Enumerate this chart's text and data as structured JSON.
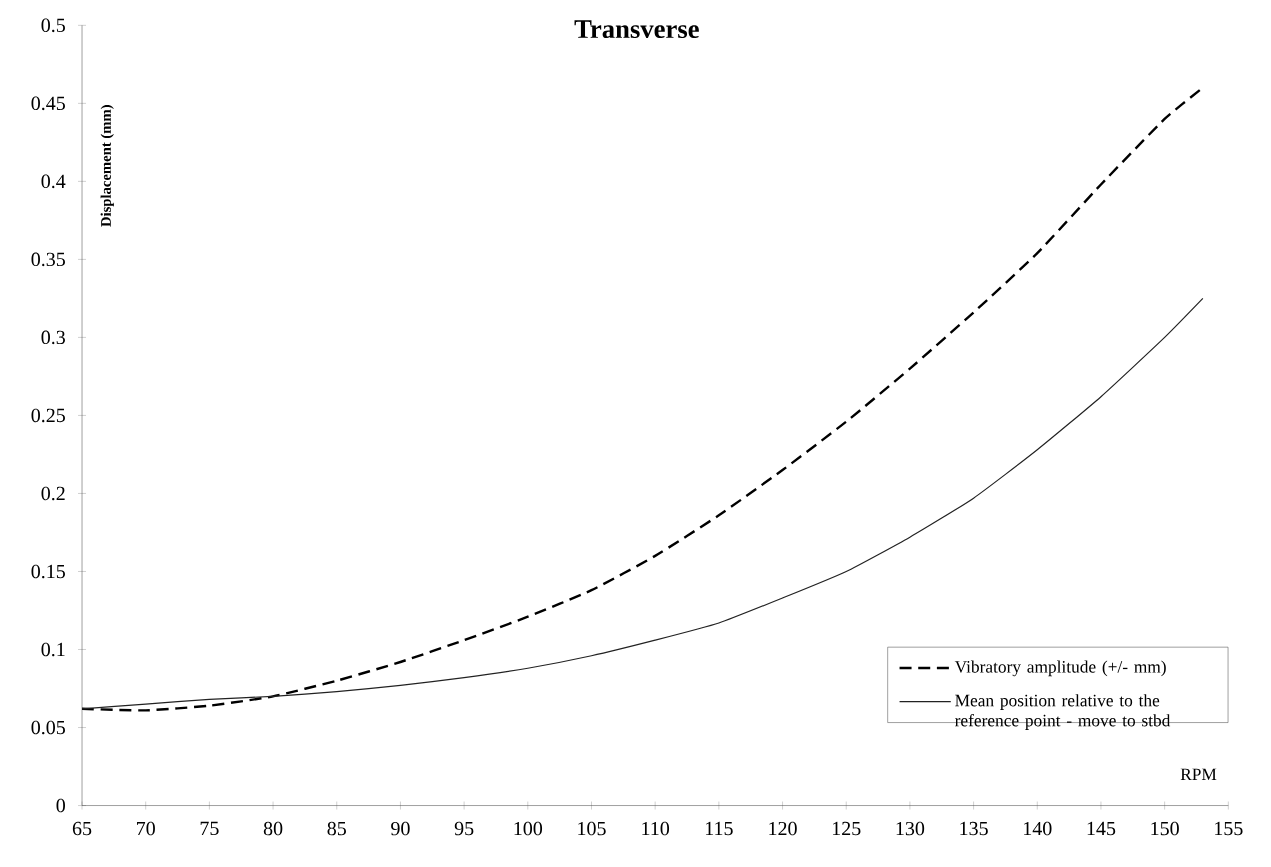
{
  "chart_data": {
    "type": "line",
    "title": "Transverse",
    "xlabel": "RPM",
    "ylabel": "Displacement (mm)",
    "x": [
      65,
      70,
      75,
      80,
      85,
      90,
      95,
      100,
      105,
      110,
      115,
      120,
      125,
      130,
      135,
      140,
      145,
      150,
      153
    ],
    "series": [
      {
        "name": "Vibratory amplitude (+/- mm)",
        "color": "#000000",
        "line_style": "dashed",
        "values": [
          0.062,
          0.061,
          0.064,
          0.07,
          0.08,
          0.092,
          0.106,
          0.121,
          0.138,
          0.16,
          0.186,
          0.215,
          0.246,
          0.28,
          0.316,
          0.354,
          0.398,
          0.44,
          0.46
        ]
      },
      {
        "name": "Mean position relative to the reference point - move to stbd",
        "color": "#222222",
        "line_style": "solid",
        "values": [
          0.062,
          0.065,
          0.068,
          0.07,
          0.073,
          0.077,
          0.082,
          0.088,
          0.096,
          0.106,
          0.117,
          0.133,
          0.15,
          0.172,
          0.197,
          0.228,
          0.262,
          0.3,
          0.325
        ]
      }
    ],
    "xlim": [
      65,
      155
    ],
    "xticks": [
      65,
      70,
      75,
      80,
      85,
      90,
      95,
      100,
      105,
      110,
      115,
      120,
      125,
      130,
      135,
      140,
      145,
      150,
      155
    ],
    "ylim": [
      0,
      0.5
    ],
    "yticks": [
      0,
      0.05,
      0.1,
      0.15,
      0.2,
      0.25,
      0.3,
      0.35,
      0.4,
      0.45,
      0.5
    ],
    "grid": false,
    "legend": "bottom right",
    "marker": "none"
  }
}
